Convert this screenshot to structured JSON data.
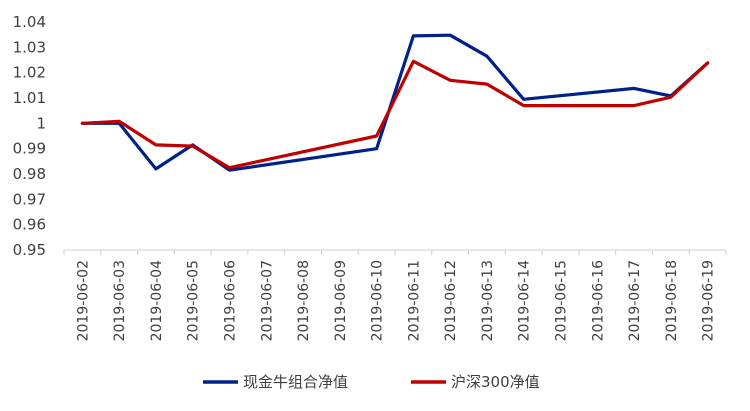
{
  "chart_data": {
    "type": "line",
    "title": "",
    "xlabel": "",
    "ylabel": "",
    "ylim": [
      0.95,
      1.04
    ],
    "yticks": [
      "0.95",
      "0.96",
      "0.97",
      "0.98",
      "0.99",
      "1",
      "1.01",
      "1.02",
      "1.03",
      "1.04"
    ],
    "ytick_values": [
      0.95,
      0.96,
      0.97,
      0.98,
      0.99,
      1.0,
      1.01,
      1.02,
      1.03,
      1.04
    ],
    "grid": false,
    "legend_position": "bottom",
    "categories": [
      "2019-06-02",
      "2019-06-03",
      "2019-06-04",
      "2019-06-05",
      "2019-06-06",
      "2019-06-07",
      "2019-06-08",
      "2019-06-09",
      "2019-06-10",
      "2019-06-11",
      "2019-06-12",
      "2019-06-13",
      "2019-06-14",
      "2019-06-15",
      "2019-06-16",
      "2019-06-17",
      "2019-06-18",
      "2019-06-19"
    ],
    "series": [
      {
        "name": "现金牛组合净值",
        "color": "#002288",
        "values": [
          1.0,
          1.0,
          0.982,
          0.9915,
          0.9815,
          null,
          null,
          null,
          0.99,
          1.0345,
          1.0348,
          1.0265,
          1.0095,
          null,
          null,
          1.0138,
          1.0108,
          1.0238
        ]
      },
      {
        "name": "沪深300净值",
        "color": "#c00000",
        "values": [
          1.0,
          1.0008,
          0.9915,
          0.991,
          0.9825,
          null,
          null,
          null,
          0.995,
          1.0245,
          1.017,
          1.0155,
          1.007,
          null,
          null,
          1.007,
          1.0103,
          1.0238
        ]
      }
    ]
  }
}
